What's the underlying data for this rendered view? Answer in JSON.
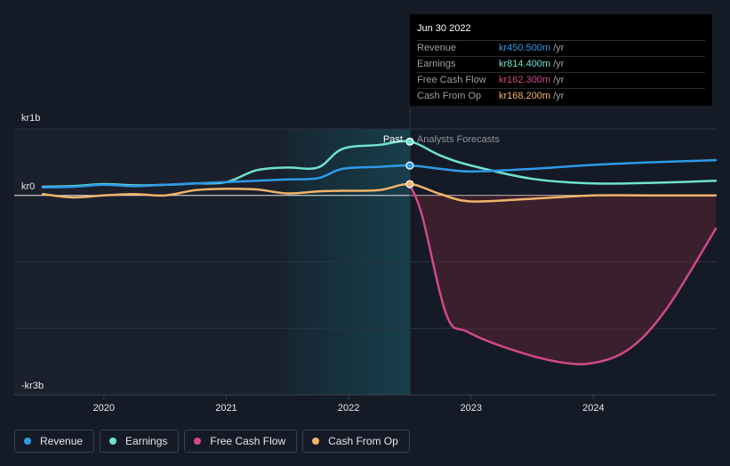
{
  "tooltip": {
    "date": "Jun 30 2022",
    "rows": [
      {
        "label": "Revenue",
        "value": "kr450.500m",
        "unit": "/yr",
        "color": "#2e9be8"
      },
      {
        "label": "Earnings",
        "value": "kr814.400m",
        "unit": "/yr",
        "color": "#6fe3cf"
      },
      {
        "label": "Free Cash Flow",
        "value": "kr162.300m",
        "unit": "/yr",
        "color": "#d1498a"
      },
      {
        "label": "Cash From Op",
        "value": "kr168.200m",
        "unit": "/yr",
        "color": "#f0b36a"
      }
    ]
  },
  "legend": [
    {
      "label": "Revenue",
      "color": "#2e9be8"
    },
    {
      "label": "Earnings",
      "color": "#6fe3cf"
    },
    {
      "label": "Free Cash Flow",
      "color": "#d1498a"
    },
    {
      "label": "Cash From Op",
      "color": "#f0b36a"
    }
  ],
  "chart_data": {
    "type": "line",
    "title": "",
    "xlabel": "",
    "ylabel": "",
    "currency": "kr",
    "xlim": [
      2019.5,
      2025.0
    ],
    "ylim": [
      -3.0,
      1.0
    ],
    "y_ticks": [
      {
        "value": 1.0,
        "label": "kr1b"
      },
      {
        "value": 0.0,
        "label": "kr0"
      },
      {
        "value": -3.0,
        "label": "-kr3b"
      }
    ],
    "x_ticks": [
      {
        "value": 2020,
        "label": "2020"
      },
      {
        "value": 2021,
        "label": "2021"
      },
      {
        "value": 2022,
        "label": "2022"
      },
      {
        "value": 2023,
        "label": "2023"
      },
      {
        "value": 2024,
        "label": "2024"
      }
    ],
    "past_label": "Past",
    "forecast_label": "Analysts Forecasts",
    "past_region": [
      2021.5,
      2022.5
    ],
    "divider_x": 2022.5,
    "series": [
      {
        "name": "Revenue",
        "color": "#2e9be8",
        "fill": false,
        "x": [
          2019.5,
          2019.75,
          2020.0,
          2020.25,
          2020.5,
          2020.75,
          2021.0,
          2021.25,
          2021.5,
          2021.75,
          2021.95,
          2022.25,
          2022.5,
          2022.75,
          2023.0,
          2023.5,
          2024.0,
          2024.5,
          2025.0
        ],
        "y": [
          0.12,
          0.13,
          0.16,
          0.14,
          0.16,
          0.18,
          0.2,
          0.22,
          0.24,
          0.26,
          0.4,
          0.43,
          0.45,
          0.4,
          0.36,
          0.4,
          0.46,
          0.5,
          0.53
        ]
      },
      {
        "name": "Earnings",
        "color": "#6fe3cf",
        "fill": false,
        "x": [
          2019.5,
          2019.75,
          2020.0,
          2020.25,
          2020.5,
          2020.75,
          2021.0,
          2021.25,
          2021.5,
          2021.75,
          2021.95,
          2022.25,
          2022.5,
          2022.75,
          2023.0,
          2023.5,
          2024.0,
          2024.5,
          2025.0
        ],
        "y": [
          0.13,
          0.14,
          0.17,
          0.15,
          0.16,
          0.18,
          0.2,
          0.38,
          0.42,
          0.42,
          0.7,
          0.76,
          0.81,
          0.6,
          0.45,
          0.25,
          0.18,
          0.19,
          0.22
        ]
      },
      {
        "name": "Free Cash Flow",
        "color": "#d1498a",
        "fill": true,
        "x": [
          2022.5,
          2022.6,
          2022.8,
          2022.97,
          2023.3,
          2023.7,
          2024.0,
          2024.3,
          2024.6,
          2025.0
        ],
        "y": [
          0.16,
          -0.3,
          -1.8,
          -2.05,
          -2.3,
          -2.5,
          -2.52,
          -2.3,
          -1.7,
          -0.5
        ]
      },
      {
        "name": "Cash From Op",
        "color": "#f0b36a",
        "fill": false,
        "x": [
          2019.5,
          2019.75,
          2020.0,
          2020.25,
          2020.5,
          2020.75,
          2021.0,
          2021.25,
          2021.5,
          2021.75,
          2021.95,
          2022.25,
          2022.5,
          2022.75,
          2023.0,
          2023.5,
          2024.0,
          2024.5,
          2025.0
        ],
        "y": [
          0.02,
          -0.03,
          0.0,
          0.02,
          0.0,
          0.08,
          0.1,
          0.09,
          0.03,
          0.06,
          0.07,
          0.08,
          0.17,
          0.02,
          -0.09,
          -0.05,
          0.0,
          0.0,
          0.0
        ]
      }
    ],
    "highlight_points": [
      {
        "series": "Revenue",
        "x": 2022.5,
        "y": 0.45
      },
      {
        "series": "Earnings",
        "x": 2022.5,
        "y": 0.81
      },
      {
        "series": "Cash From Op",
        "x": 2022.5,
        "y": 0.17
      }
    ]
  }
}
